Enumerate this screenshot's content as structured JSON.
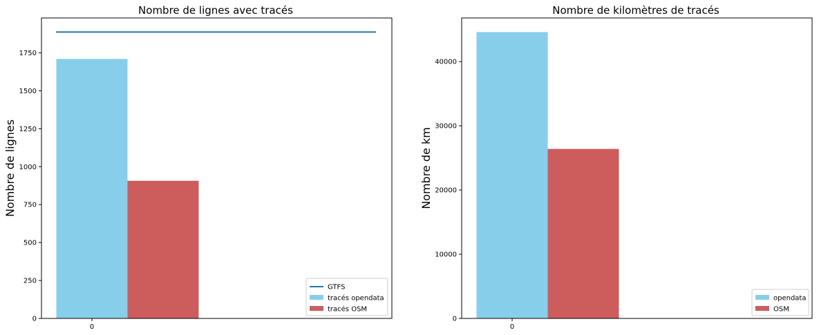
{
  "chart_data": [
    {
      "type": "bar",
      "title": "Nombre de lignes avec tracés",
      "xlabel": "",
      "ylabel": "Nombre de lignes",
      "categories": [
        "0"
      ],
      "ylim": [
        0,
        1980
      ],
      "yticks": [
        0,
        250,
        500,
        750,
        1000,
        1250,
        1500,
        1750
      ],
      "series": [
        {
          "name": "tracés opendata",
          "kind": "bar",
          "color": "#87CEEB",
          "values": [
            1710
          ]
        },
        {
          "name": "tracés OSM",
          "kind": "bar",
          "color": "#CD5C5C",
          "values": [
            907
          ]
        },
        {
          "name": "GTFS",
          "kind": "line",
          "color": "#1f77b4",
          "values": [
            1887
          ]
        }
      ],
      "legend": {
        "position": "bottom-right",
        "entries": [
          "GTFS",
          "tracés opendata",
          "tracés OSM"
        ]
      }
    },
    {
      "type": "bar",
      "title": "Nombre de kilomètres de tracés",
      "xlabel": "",
      "ylabel": "Nombre de km",
      "categories": [
        "0"
      ],
      "ylim": [
        0,
        46800
      ],
      "yticks": [
        0,
        10000,
        20000,
        30000,
        40000
      ],
      "series": [
        {
          "name": "opendata",
          "kind": "bar",
          "color": "#87CEEB",
          "values": [
            44600
          ]
        },
        {
          "name": "OSM",
          "kind": "bar",
          "color": "#CD5C5C",
          "values": [
            26400
          ]
        }
      ],
      "legend": {
        "position": "bottom-right",
        "entries": [
          "opendata",
          "OSM"
        ]
      }
    }
  ]
}
